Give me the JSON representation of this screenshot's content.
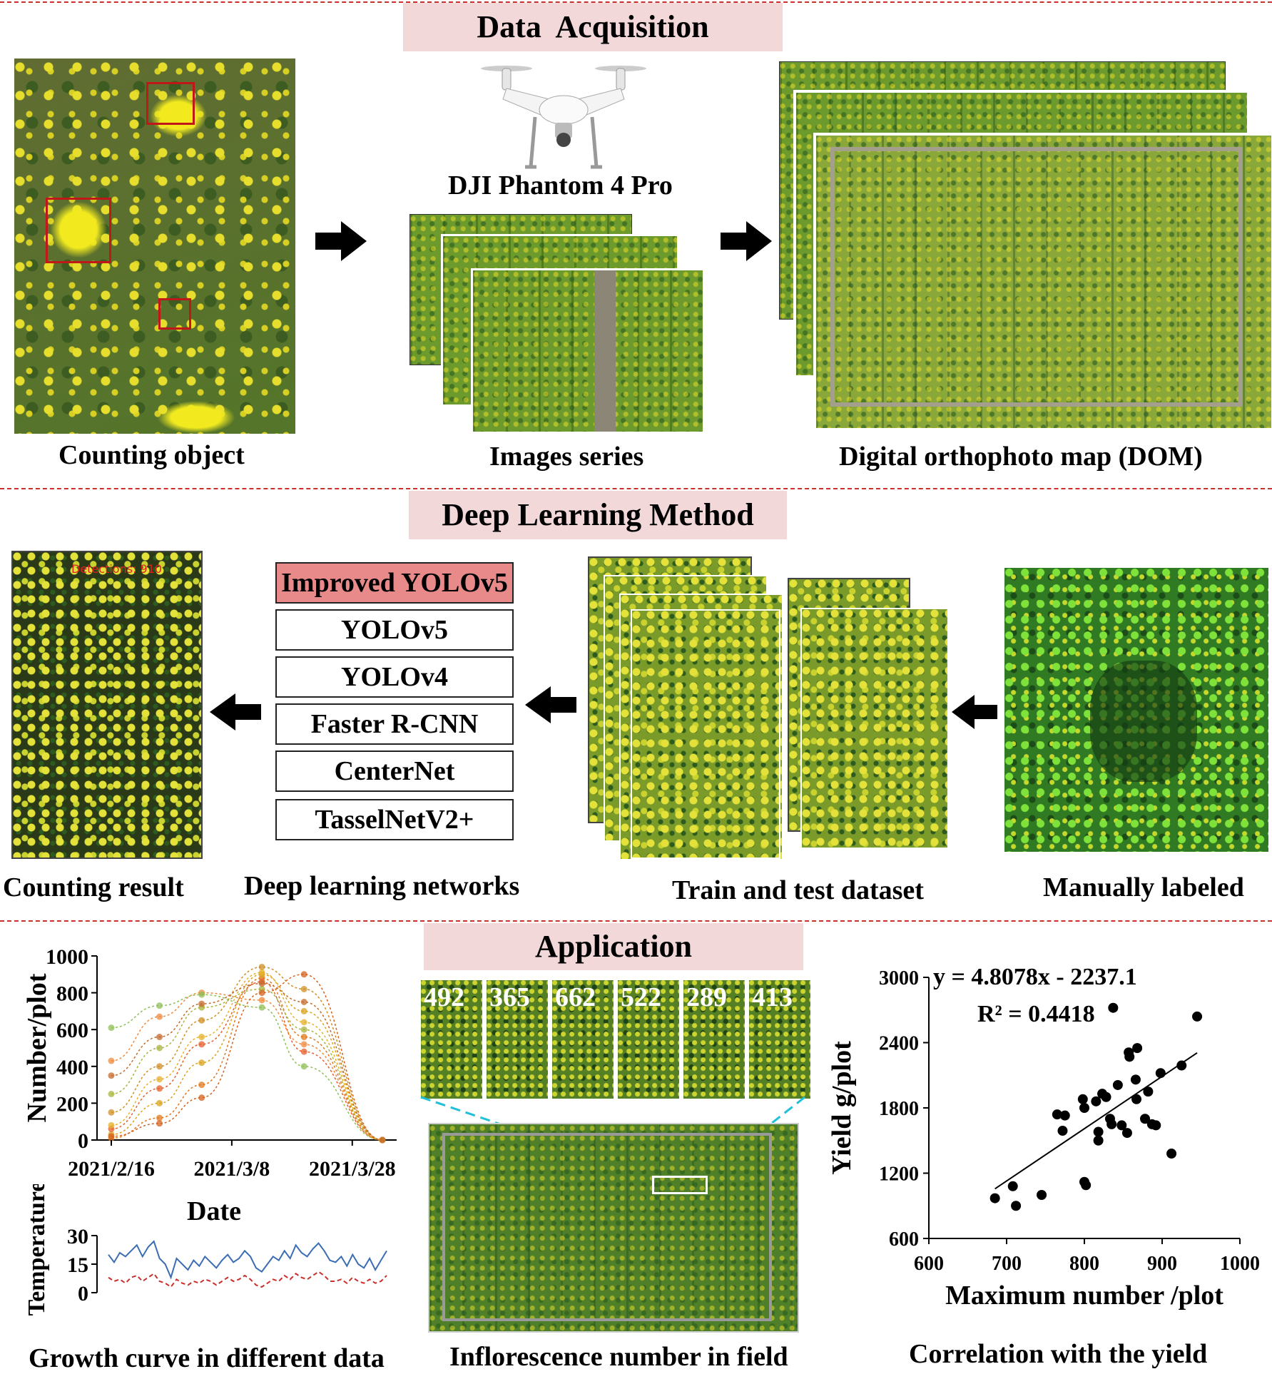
{
  "sections": {
    "acquisition": "Data  Acquisition",
    "deep": "Deep Learning Method",
    "application": "Application"
  },
  "acquisition": {
    "drone_label": "DJI Phantom 4 Pro",
    "captions": {
      "counting_object": "Counting object",
      "images_series": "Images series",
      "dom": "Digital orthophoto map (DOM)"
    }
  },
  "deep": {
    "detections_label": "Detections: 910",
    "networks": [
      "Improved YOLOv5",
      "YOLOv5",
      "YOLOv4",
      "Faster R-CNN",
      "CenterNet",
      "TasselNetV2+"
    ],
    "captions": {
      "counting_result": "Counting result",
      "networks": "Deep learning networks",
      "dataset": "Train and test dataset",
      "labeled": "Manually labeled"
    }
  },
  "application": {
    "tiles": [
      "492",
      "365",
      "662",
      "522",
      "289",
      "413"
    ],
    "captions": {
      "growth": "Growth curve in different data",
      "field": "Inflorescence number in field",
      "correlation": "Correlation with the yield"
    }
  },
  "chart_data": [
    {
      "type": "line",
      "xlabel": "Date",
      "ylabel": "Number/plot",
      "ylim": [
        0,
        1000
      ],
      "yticks": [
        0,
        200,
        400,
        600,
        800,
        1000
      ],
      "xtick_labels": [
        "2021/2/16",
        "2021/3/8",
        "2021/3/28"
      ],
      "x_dates": [
        "2021/2/16",
        "2021/2/24",
        "2021/3/3",
        "2021/3/13",
        "2021/3/20",
        "2021/4/2"
      ],
      "series": [
        {
          "values": [
            10,
            120,
            300,
            880,
            560,
            0
          ]
        },
        {
          "values": [
            30,
            200,
            420,
            900,
            700,
            0
          ]
        },
        {
          "values": [
            60,
            280,
            520,
            860,
            480,
            0
          ]
        },
        {
          "values": [
            150,
            400,
            650,
            940,
            820,
            0
          ]
        },
        {
          "values": [
            250,
            500,
            720,
            820,
            600,
            0
          ]
        },
        {
          "values": [
            430,
            670,
            800,
            760,
            520,
            0
          ]
        },
        {
          "values": [
            610,
            730,
            790,
            720,
            400,
            0
          ]
        },
        {
          "values": [
            20,
            90,
            230,
            800,
            900,
            0
          ]
        },
        {
          "values": [
            80,
            330,
            560,
            910,
            640,
            0
          ]
        },
        {
          "values": [
            350,
            560,
            740,
            850,
            750,
            0
          ]
        }
      ]
    },
    {
      "type": "line",
      "ylabel": "Temperature",
      "ylim": [
        0,
        30
      ],
      "yticks": [
        0,
        15,
        30
      ],
      "series": [
        {
          "color": "#3b6db3",
          "style": "solid",
          "values": [
            20,
            16,
            21,
            19,
            22,
            25,
            19,
            24,
            27,
            18,
            15,
            8,
            18,
            15,
            12,
            17,
            14,
            19,
            16,
            13,
            17,
            20,
            16,
            18,
            22,
            19,
            13,
            11,
            15,
            19,
            17,
            22,
            18,
            25,
            21,
            19,
            23,
            26,
            22,
            17,
            16,
            19,
            14,
            20,
            15,
            13,
            18,
            12,
            17,
            22
          ]
        },
        {
          "color": "#c9302c",
          "style": "dashed",
          "values": [
            8,
            6,
            7,
            5,
            8,
            9,
            6,
            8,
            10,
            6,
            5,
            3,
            7,
            5,
            4,
            6,
            5,
            7,
            6,
            4,
            6,
            8,
            6,
            7,
            9,
            7,
            4,
            3,
            5,
            7,
            6,
            9,
            7,
            10,
            8,
            7,
            9,
            11,
            9,
            6,
            6,
            7,
            5,
            8,
            6,
            5,
            7,
            5,
            6,
            9
          ]
        }
      ]
    },
    {
      "type": "scatter",
      "xlabel": "Maximum number /plot",
      "ylabel": "Yield g/plot",
      "xlim": [
        600,
        1000
      ],
      "ylim": [
        600,
        3000
      ],
      "xticks": [
        600,
        700,
        800,
        900,
        1000
      ],
      "yticks": [
        600,
        1200,
        1800,
        2400,
        3000
      ],
      "equation": "y = 4.8078x - 2237.1",
      "r2": "R² = 0.4418",
      "points": [
        [
          685,
          970
        ],
        [
          708,
          1080
        ],
        [
          712,
          900
        ],
        [
          745,
          1000
        ],
        [
          765,
          1740
        ],
        [
          772,
          1590
        ],
        [
          775,
          1730
        ],
        [
          798,
          1880
        ],
        [
          800,
          1800
        ],
        [
          800,
          1120
        ],
        [
          802,
          1090
        ],
        [
          815,
          1860
        ],
        [
          818,
          1580
        ],
        [
          818,
          1500
        ],
        [
          823,
          1930
        ],
        [
          828,
          1900
        ],
        [
          833,
          1700
        ],
        [
          835,
          1650
        ],
        [
          837,
          2720
        ],
        [
          843,
          2010
        ],
        [
          848,
          1640
        ],
        [
          855,
          1570
        ],
        [
          857,
          2310
        ],
        [
          858,
          2270
        ],
        [
          866,
          2060
        ],
        [
          867,
          1880
        ],
        [
          868,
          2350
        ],
        [
          878,
          1700
        ],
        [
          882,
          1950
        ],
        [
          887,
          1650
        ],
        [
          892,
          1640
        ],
        [
          898,
          2120
        ],
        [
          912,
          1380
        ],
        [
          925,
          2190
        ],
        [
          945,
          2640
        ]
      ]
    }
  ]
}
